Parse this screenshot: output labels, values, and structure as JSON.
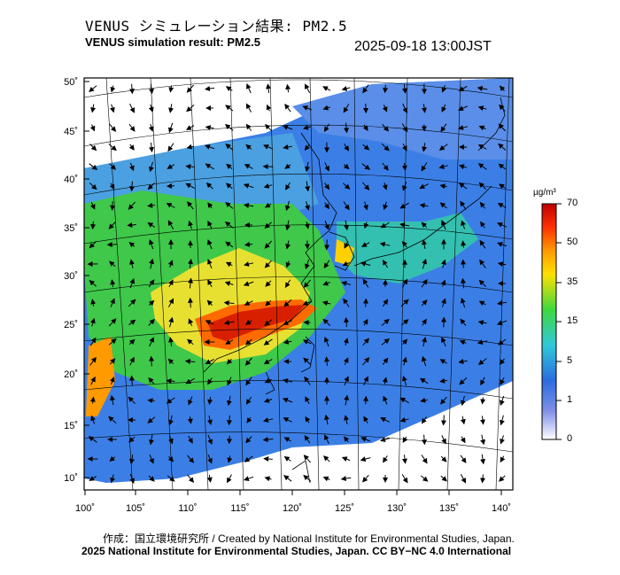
{
  "title_jp": "VENUS シミュレーション結果: PM2.5",
  "title_en": "VENUS simulation result: PM2.5",
  "datetime": "2025-09-18 13:00JST",
  "colorbar": {
    "unit": "µg/m³",
    "ticks": [
      "70",
      "50",
      "35",
      "15",
      "5",
      "1",
      "0"
    ],
    "colors": [
      "#d01000",
      "#ff6a00",
      "#ffd200",
      "#3fd83f",
      "#29b8e0",
      "#2a6ce0",
      "#ffffff"
    ]
  },
  "axes": {
    "lat_labels": [
      "50˚",
      "45˚",
      "40˚",
      "35˚",
      "30˚",
      "25˚",
      "20˚",
      "15˚",
      "10˚"
    ],
    "lon_labels": [
      "100˚",
      "105˚",
      "110˚",
      "115˚",
      "120˚",
      "125˚",
      "130˚",
      "135˚",
      "140˚"
    ]
  },
  "credit_line1": "作成：国立環境研究所 / Created by National Institute for Environmental Studies, Japan.",
  "credit_line2": "2025 National Institute for Environmental Studies, Japan. CC BY−NC 4.0 International"
}
